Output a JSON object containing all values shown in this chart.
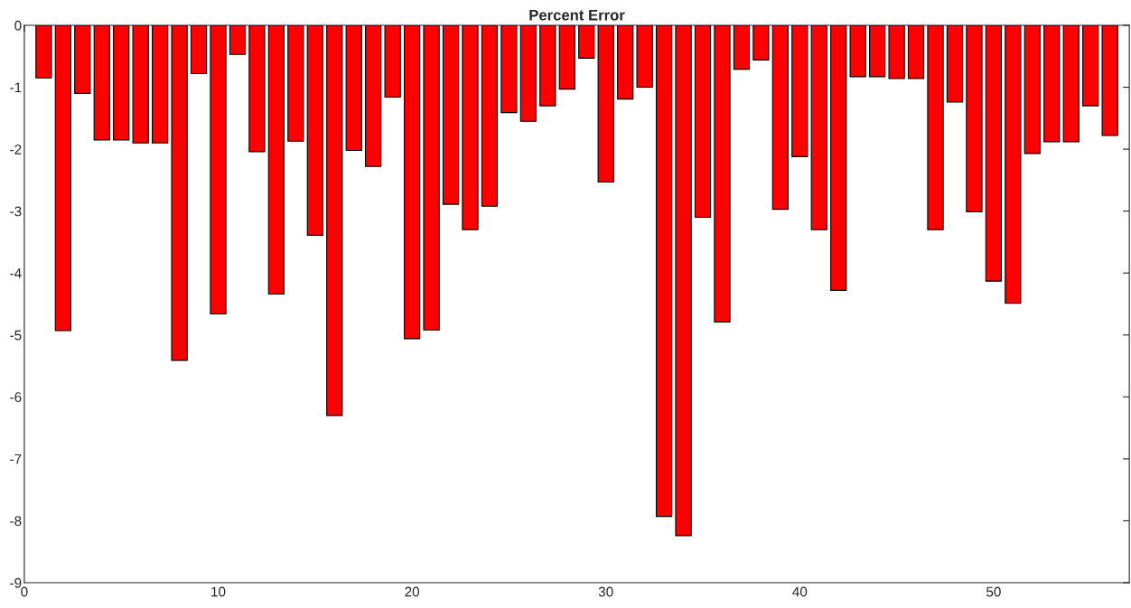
{
  "chart_data": {
    "type": "bar",
    "title": "Percent Error",
    "x": [
      1,
      2,
      3,
      4,
      5,
      6,
      7,
      8,
      9,
      10,
      11,
      12,
      13,
      14,
      15,
      16,
      17,
      18,
      19,
      20,
      21,
      22,
      23,
      24,
      25,
      26,
      27,
      28,
      29,
      30,
      31,
      32,
      33,
      34,
      35,
      36,
      37,
      38,
      39,
      40,
      41,
      42,
      43,
      44,
      45,
      46,
      47,
      48,
      49,
      50,
      51,
      52,
      53,
      54,
      55,
      56
    ],
    "values": [
      -0.85,
      -4.93,
      -1.1,
      -1.85,
      -1.85,
      -1.9,
      -1.9,
      -5.41,
      -0.78,
      -4.66,
      -0.47,
      -2.04,
      -4.34,
      -1.87,
      -3.39,
      -6.3,
      -2.02,
      -2.28,
      -1.16,
      -5.06,
      -4.92,
      -2.89,
      -3.3,
      -2.92,
      -1.41,
      -1.55,
      -1.3,
      -1.03,
      -0.53,
      -2.53,
      -1.19,
      -1.0,
      -7.93,
      -8.24,
      -3.1,
      -4.79,
      -0.71,
      -0.56,
      -2.97,
      -2.12,
      -3.3,
      -4.28,
      -0.83,
      -0.83,
      -0.86,
      -0.86,
      -3.3,
      -1.24,
      -3.01,
      -4.13,
      -4.49,
      -2.07,
      -1.88,
      -1.88,
      -1.3,
      -1.78
    ],
    "color": "#ff0000",
    "xlim": [
      0,
      57
    ],
    "xticks": [
      0,
      10,
      20,
      30,
      40,
      50
    ],
    "ylim": [
      -9,
      0
    ],
    "yticks": [
      -9,
      -8,
      -7,
      -6,
      -5,
      -4,
      -3,
      -2,
      -1,
      0
    ],
    "grid": false
  }
}
